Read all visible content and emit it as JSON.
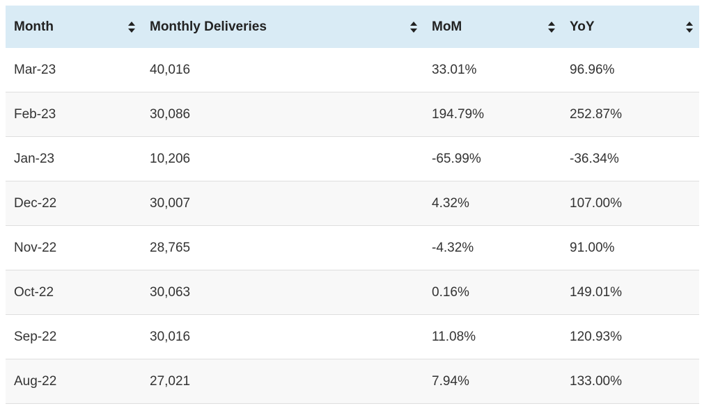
{
  "table": {
    "headers": [
      "Month",
      "Monthly Deliveries",
      "MoM",
      "YoY"
    ],
    "rows": [
      [
        "Mar-23",
        "40,016",
        "33.01%",
        "96.96%"
      ],
      [
        "Feb-23",
        "30,086",
        "194.79%",
        "252.87%"
      ],
      [
        "Jan-23",
        "10,206",
        "-65.99%",
        "-36.34%"
      ],
      [
        "Dec-22",
        "30,007",
        "4.32%",
        "107.00%"
      ],
      [
        "Nov-22",
        "28,765",
        "-4.32%",
        "91.00%"
      ],
      [
        "Oct-22",
        "30,063",
        "0.16%",
        "149.01%"
      ],
      [
        "Sep-22",
        "30,016",
        "11.08%",
        "120.93%"
      ],
      [
        "Aug-22",
        "27,021",
        "7.94%",
        "133.00%"
      ]
    ]
  }
}
